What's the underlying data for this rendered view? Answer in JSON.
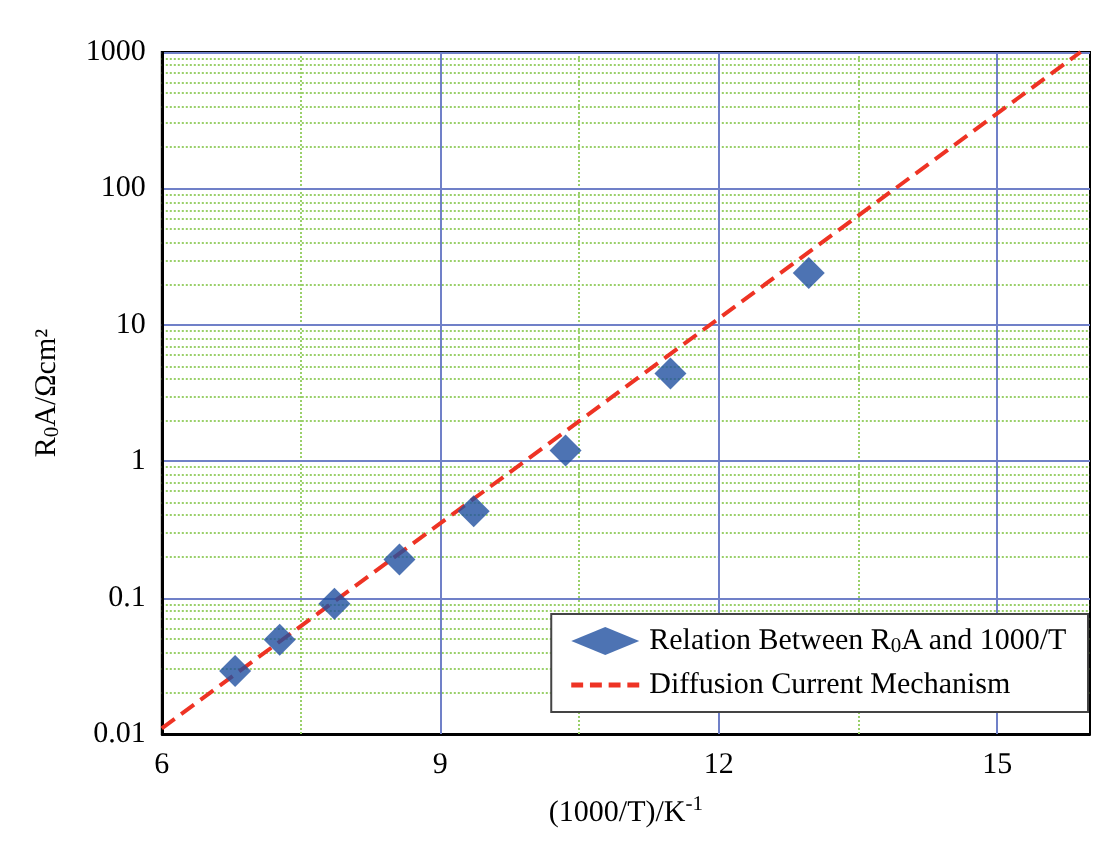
{
  "chart_data": {
    "type": "scatter",
    "xlabel": "(1000/T)/K$^{-1}$",
    "ylabel": "R$_{0}$A/Ωcm²",
    "xlim": [
      6,
      16
    ],
    "xticks": [
      6,
      {
        "value": 7.5,
        "label": null
      },
      9,
      {
        "value": 10.5,
        "label": null
      },
      12,
      {
        "value": 13.5,
        "label": null
      },
      15
    ],
    "ylim": [
      0.01,
      1000
    ],
    "yticks": [
      0.01,
      {
        "value": 0.02,
        "label": null
      },
      {
        "value": 0.03,
        "label": null
      },
      {
        "value": 0.04,
        "label": null
      },
      {
        "value": 0.05,
        "label": null
      },
      {
        "value": 0.06,
        "label": null
      },
      {
        "value": 0.07,
        "label": null
      },
      {
        "value": 0.08,
        "label": null
      },
      {
        "value": 0.09,
        "label": null
      },
      0.1,
      {
        "value": 0.2,
        "label": null
      },
      {
        "value": 0.3,
        "label": null
      },
      {
        "value": 0.4,
        "label": null
      },
      {
        "value": 0.5,
        "label": null
      },
      {
        "value": 0.6,
        "label": null
      },
      {
        "value": 0.7,
        "label": null
      },
      {
        "value": 0.8,
        "label": null
      },
      {
        "value": 0.9,
        "label": null
      },
      1,
      {
        "value": 2,
        "label": null
      },
      {
        "value": 3,
        "label": null
      },
      {
        "value": 4,
        "label": null
      },
      {
        "value": 5,
        "label": null
      },
      {
        "value": 6,
        "label": null
      },
      {
        "value": 7,
        "label": null
      },
      {
        "value": 8,
        "label": null
      },
      {
        "value": 9,
        "label": null
      },
      10,
      {
        "value": 20,
        "label": null
      },
      {
        "value": 30,
        "label": null
      },
      {
        "value": 40,
        "label": null
      },
      {
        "value": 50,
        "label": null
      },
      {
        "value": 60,
        "label": null
      },
      {
        "value": 70,
        "label": null
      },
      {
        "value": 80,
        "label": null
      },
      {
        "value": 90,
        "label": null
      },
      100,
      {
        "value": 200,
        "label": null
      },
      {
        "value": 300,
        "label": null
      },
      {
        "value": 400,
        "label": null
      },
      {
        "value": 500,
        "label": null
      },
      {
        "value": 600,
        "label": null
      },
      {
        "value": 700,
        "label": null
      },
      {
        "value": 800,
        "label": null
      },
      {
        "value": 900,
        "label": null
      },
      1000
    ],
    "log": "y",
    "grid": true,
    "legend": "bottom right",
    "series": [
      {
        "name": "Relation Between R$_{0}$A and 1000/T",
        "marker": "diamond",
        "color": "#2150a0",
        "x": [
          6.79,
          7.27,
          7.86,
          8.56,
          9.36,
          10.35,
          11.48,
          12.97
        ],
        "values": [
          0.029,
          0.049,
          0.09,
          0.19,
          0.43,
          1.2,
          4.4,
          24
        ]
      },
      {
        "name": "Diffusion Current Mechanism",
        "type": "line",
        "marker": "none",
        "line_style": "dashed",
        "color": "#ee3324",
        "x": [
          6,
          15.9
        ],
        "values": [
          0.011,
          1000
        ]
      }
    ]
  }
}
